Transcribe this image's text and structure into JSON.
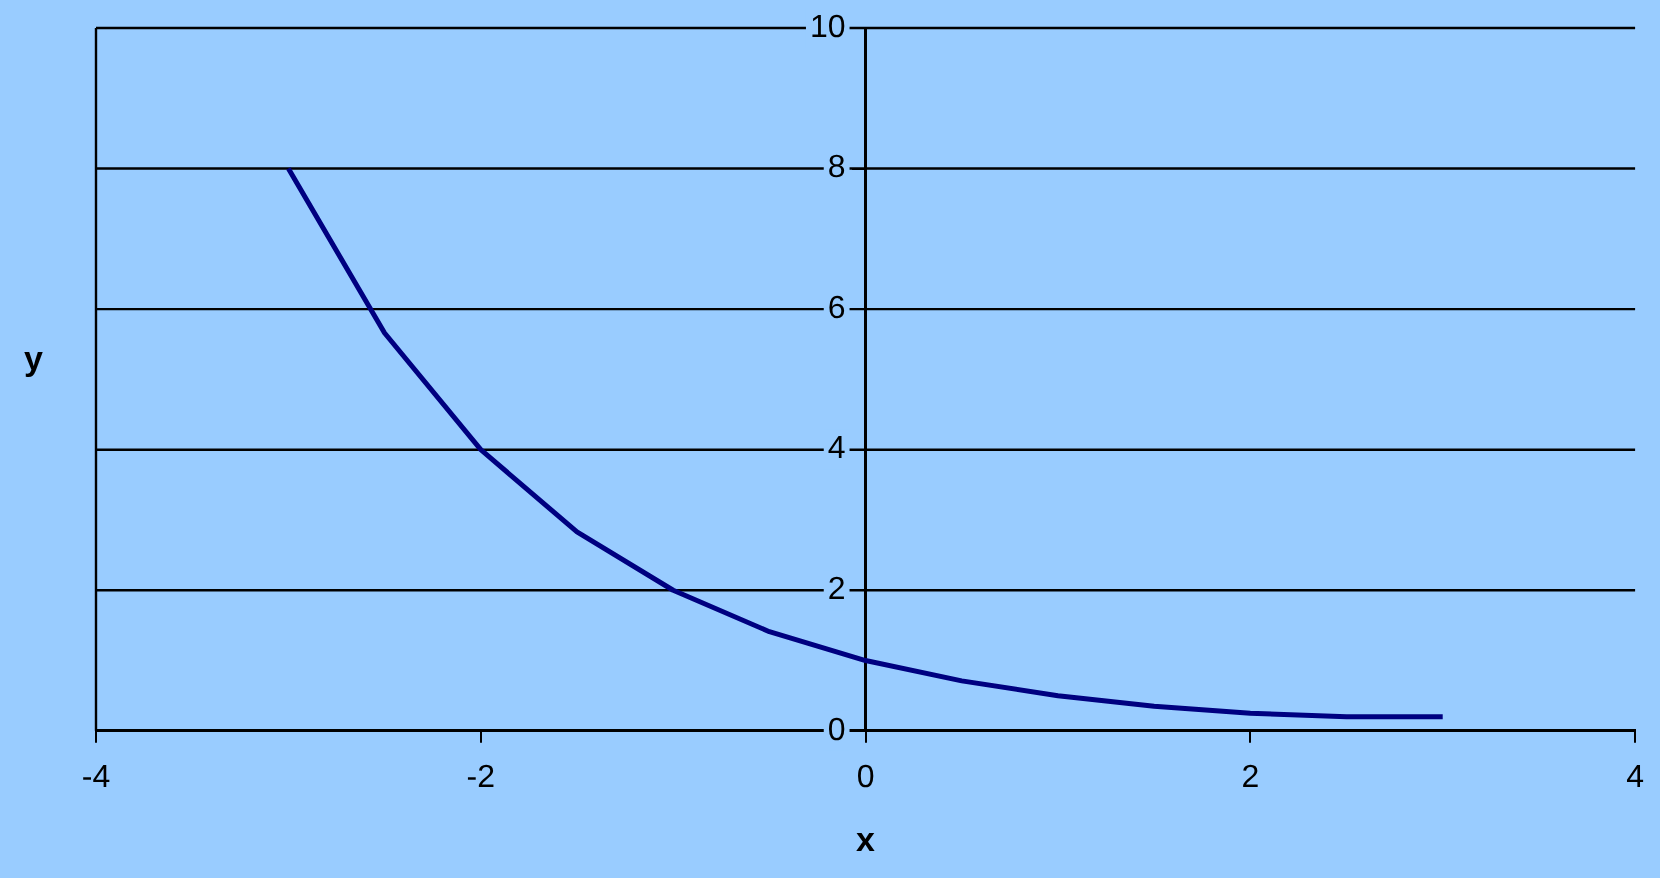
{
  "chart_data": {
    "type": "line",
    "xlabel": "x",
    "ylabel": "y",
    "x": [
      -3,
      -2.5,
      -2,
      -1.5,
      -1,
      -0.5,
      0,
      0.5,
      1,
      1.5,
      2,
      2.5,
      3
    ],
    "series": [
      {
        "color": "#000080",
        "values": [
          8,
          5.66,
          4,
          2.83,
          2,
          1.41,
          1,
          0.71,
          0.5,
          0.35,
          0.25,
          0.2,
          0.2
        ]
      }
    ],
    "xlim": [
      -4,
      4
    ],
    "xticks": [
      -4,
      -2,
      0,
      2,
      4
    ],
    "ylim": [
      0,
      10
    ],
    "yticks": [
      0,
      2,
      4,
      6,
      8,
      10
    ],
    "grid": "y",
    "legend": false,
    "marker": "none",
    "line_style": "solid"
  }
}
